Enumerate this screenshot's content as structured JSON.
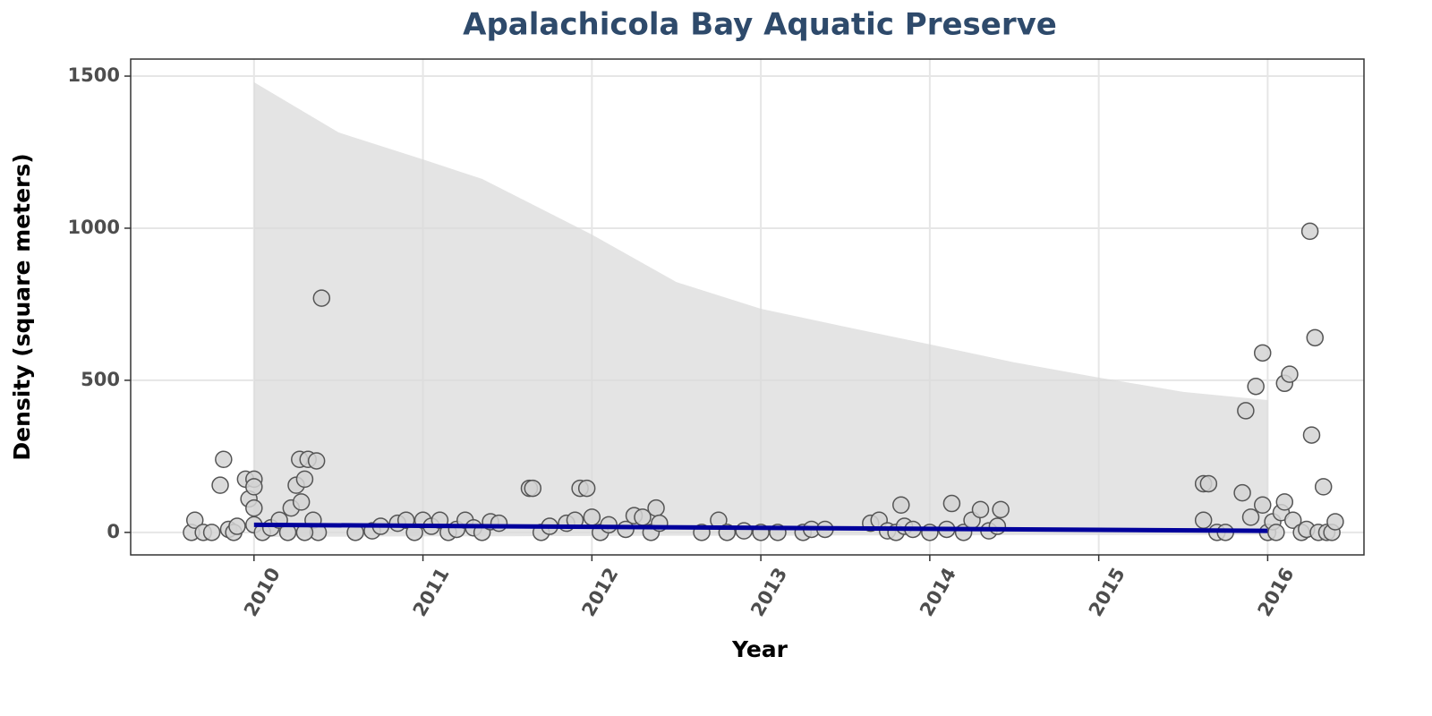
{
  "chart_data": {
    "type": "scatter",
    "title": "Apalachicola Bay Aquatic Preserve",
    "x_label": "Year",
    "y_label": "Density (square meters)",
    "xlim": [
      2009.27,
      2016.57
    ],
    "ylim": [
      -74,
      1556
    ],
    "xticks": [
      2010,
      2011,
      2012,
      2013,
      2014,
      2015,
      2016
    ],
    "yticks": [
      0,
      500,
      1000,
      1500
    ],
    "grid": true,
    "point_color": "#d3d3d3",
    "line_color": "#00009c",
    "ribbon_color": "#d9d9d9",
    "points": {
      "x": [
        2009.63,
        2009.65,
        2009.7,
        2009.75,
        2009.8,
        2009.82,
        2009.85,
        2009.88,
        2009.9,
        2009.95,
        2009.97,
        2010.0,
        2010.0,
        2010.0,
        2010.0,
        2010.05,
        2010.1,
        2010.15,
        2010.2,
        2010.22,
        2010.25,
        2010.27,
        2010.28,
        2010.3,
        2010.32,
        2010.35,
        2010.37,
        2010.4,
        2010.38,
        2010.3,
        2010.6,
        2010.7,
        2010.75,
        2010.85,
        2010.9,
        2010.95,
        2011.0,
        2011.05,
        2011.1,
        2011.15,
        2011.2,
        2011.25,
        2011.3,
        2011.35,
        2011.4,
        2011.45,
        2011.63,
        2011.65,
        2011.7,
        2011.75,
        2011.85,
        2011.9,
        2011.93,
        2011.97,
        2012.0,
        2012.05,
        2012.1,
        2012.2,
        2012.25,
        2012.3,
        2012.35,
        2012.38,
        2012.4,
        2012.65,
        2012.75,
        2012.8,
        2012.9,
        2013.0,
        2013.1,
        2013.25,
        2013.3,
        2013.38,
        2013.65,
        2013.7,
        2013.75,
        2013.8,
        2013.85,
        2013.83,
        2013.9,
        2014.0,
        2014.1,
        2014.13,
        2014.2,
        2014.25,
        2014.3,
        2014.35,
        2014.4,
        2014.42,
        2015.62,
        2015.65,
        2015.62,
        2015.7,
        2015.75,
        2015.85,
        2015.87,
        2015.9,
        2015.93,
        2015.97,
        2015.97,
        2016.0,
        2016.03,
        2016.05,
        2016.08,
        2016.1,
        2016.1,
        2016.13,
        2016.15,
        2016.2,
        2016.23,
        2016.25,
        2016.26,
        2016.28,
        2016.3,
        2016.33,
        2016.35,
        2016.38,
        2016.4
      ],
      "y": [
        0,
        40,
        0,
        0,
        155,
        240,
        10,
        0,
        20,
        175,
        110,
        175,
        150,
        80,
        25,
        0,
        15,
        40,
        0,
        80,
        155,
        240,
        100,
        175,
        240,
        40,
        235,
        770,
        0,
        0,
        0,
        5,
        20,
        30,
        40,
        0,
        40,
        20,
        40,
        0,
        10,
        40,
        15,
        0,
        35,
        30,
        145,
        145,
        0,
        20,
        30,
        40,
        145,
        145,
        50,
        0,
        25,
        10,
        55,
        50,
        0,
        80,
        30,
        0,
        40,
        0,
        5,
        0,
        0,
        0,
        10,
        10,
        30,
        40,
        5,
        0,
        20,
        90,
        10,
        0,
        10,
        95,
        0,
        40,
        75,
        5,
        20,
        75,
        160,
        160,
        40,
        0,
        0,
        130,
        400,
        50,
        480,
        590,
        90,
        0,
        35,
        0,
        65,
        100,
        490,
        520,
        40,
        0,
        10,
        990,
        320,
        640,
        0,
        150,
        0,
        0,
        35
      ]
    },
    "trend": {
      "x": [
        2010,
        2016
      ],
      "y": [
        25,
        5
      ]
    },
    "ribbon": {
      "x": [
        2010,
        2010.5,
        2011,
        2011.35,
        2012,
        2012.5,
        2013,
        2013.5,
        2014,
        2014.5,
        2015,
        2015.5,
        2016
      ],
      "upper": [
        1480,
        1315,
        1226,
        1162,
        979,
        823,
        735,
        676,
        618,
        559,
        509,
        462,
        435
      ],
      "lower": [
        -15,
        -14,
        -13,
        -13,
        -12,
        -11,
        -11,
        -10,
        -10,
        -9,
        -9,
        -8,
        -8
      ]
    }
  }
}
